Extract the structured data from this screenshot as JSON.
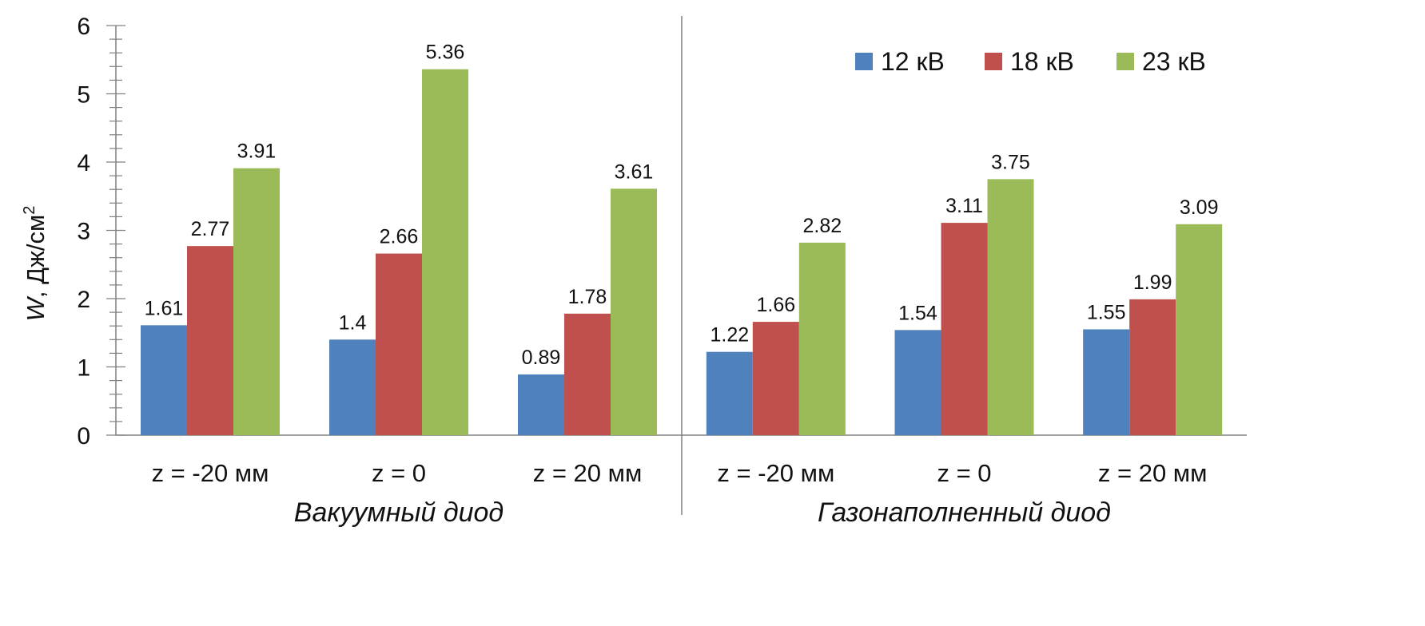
{
  "chart_data": {
    "type": "bar",
    "title": "",
    "ylabel": {
      "symbol": "W",
      "text": ", Дж/см",
      "superscript": "2"
    },
    "ylim": [
      0,
      6
    ],
    "yticks": [
      "0",
      "1",
      "2",
      "3",
      "4",
      "5",
      "6"
    ],
    "grid": false,
    "legend_position": "top-right",
    "groups": [
      {
        "name": "Вакуумный диод",
        "categories": [
          "z = -20 мм",
          "z = 0",
          "z = 20 мм"
        ],
        "series": [
          {
            "name": "12 кВ",
            "values": [
              1.61,
              1.4,
              0.89
            ],
            "labels": [
              "1.61",
              "1.4",
              "0.89"
            ]
          },
          {
            "name": "18 кВ",
            "values": [
              2.77,
              2.66,
              1.78
            ],
            "labels": [
              "2.77",
              "2.66",
              "1.78"
            ]
          },
          {
            "name": "23 кВ",
            "values": [
              3.91,
              5.36,
              3.61
            ],
            "labels": [
              "3.91",
              "5.36",
              "3.61"
            ]
          }
        ]
      },
      {
        "name": "Газонаполненный диод",
        "categories": [
          "z = -20 мм",
          "z = 0",
          "z = 20 мм"
        ],
        "series": [
          {
            "name": "12 кВ",
            "values": [
              1.22,
              1.54,
              1.55
            ],
            "labels": [
              "1.22",
              "1.54",
              "1.55"
            ]
          },
          {
            "name": "18 кВ",
            "values": [
              1.66,
              3.11,
              1.99
            ],
            "labels": [
              "1.66",
              "3.11",
              "1.99"
            ]
          },
          {
            "name": "23 кВ",
            "values": [
              2.82,
              3.75,
              3.09
            ],
            "labels": [
              "2.82",
              "3.75",
              "3.09"
            ]
          }
        ]
      }
    ],
    "legend": [
      {
        "name": "12 кВ",
        "color": "#4f81bd"
      },
      {
        "name": "18 кВ",
        "color": "#c0504d"
      },
      {
        "name": "23 кВ",
        "color": "#9bbb59"
      }
    ]
  }
}
